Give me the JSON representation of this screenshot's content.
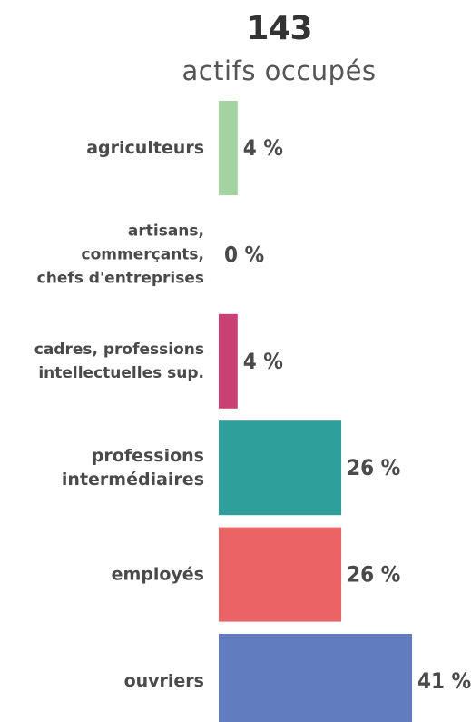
{
  "header": {
    "total": "143",
    "subtitle": "actifs occupés"
  },
  "chart_data": {
    "type": "bar",
    "orientation": "horizontal",
    "categories": [
      [
        "agriculteurs"
      ],
      [
        "artisans,",
        "commerçants,",
        "chefs d'entreprises"
      ],
      [
        "cadres, professions",
        "intellectuelles sup."
      ],
      [
        "professions",
        "intermédiaires"
      ],
      [
        "employés"
      ],
      [
        "ouvriers"
      ]
    ],
    "values": [
      4,
      0,
      4,
      26,
      26,
      41
    ],
    "value_labels": [
      "4 %",
      "0 %",
      "4 %",
      "26 %",
      "26 %",
      "41 %"
    ],
    "colors": [
      "#a3d3a0",
      "#f4a63a",
      "#c94073",
      "#2f9f9b",
      "#eb6465",
      "#627cc0"
    ],
    "unit": "%",
    "xlim": [
      0,
      41
    ],
    "grid": false,
    "legend": "none"
  }
}
